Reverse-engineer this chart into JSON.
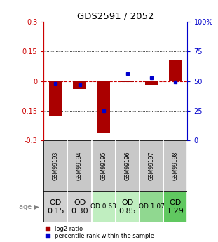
{
  "title": "GDS2591 / 2052",
  "samples": [
    "GSM99193",
    "GSM99194",
    "GSM99195",
    "GSM99196",
    "GSM99197",
    "GSM99198"
  ],
  "log2_ratio": [
    -0.18,
    -0.04,
    -0.26,
    -0.005,
    -0.02,
    0.11
  ],
  "percentile_rank": [
    48,
    47,
    25,
    56,
    53,
    49
  ],
  "age_labels": [
    "OD\n0.15",
    "OD\n0.30",
    "OD 0.63",
    "OD\n0.85",
    "OD 1.07",
    "OD\n1.29"
  ],
  "age_bg_colors": [
    "#d0d0d0",
    "#d0d0d0",
    "#c0eec0",
    "#c0eec0",
    "#90d890",
    "#60c860"
  ],
  "age_font_sizes": [
    8,
    8,
    6.5,
    8,
    6.5,
    8
  ],
  "bar_color": "#aa0000",
  "dot_color": "#0000cc",
  "hline_color": "#cc0000",
  "ylim": [
    -0.3,
    0.3
  ],
  "yticks_left": [
    -0.3,
    -0.15,
    0,
    0.15,
    0.3
  ],
  "yticks_right": [
    0,
    25,
    50,
    75,
    100
  ],
  "left_axis_color": "#cc0000",
  "right_axis_color": "#0000cc",
  "bar_width": 0.55,
  "sample_bg_color": "#c8c8c8"
}
